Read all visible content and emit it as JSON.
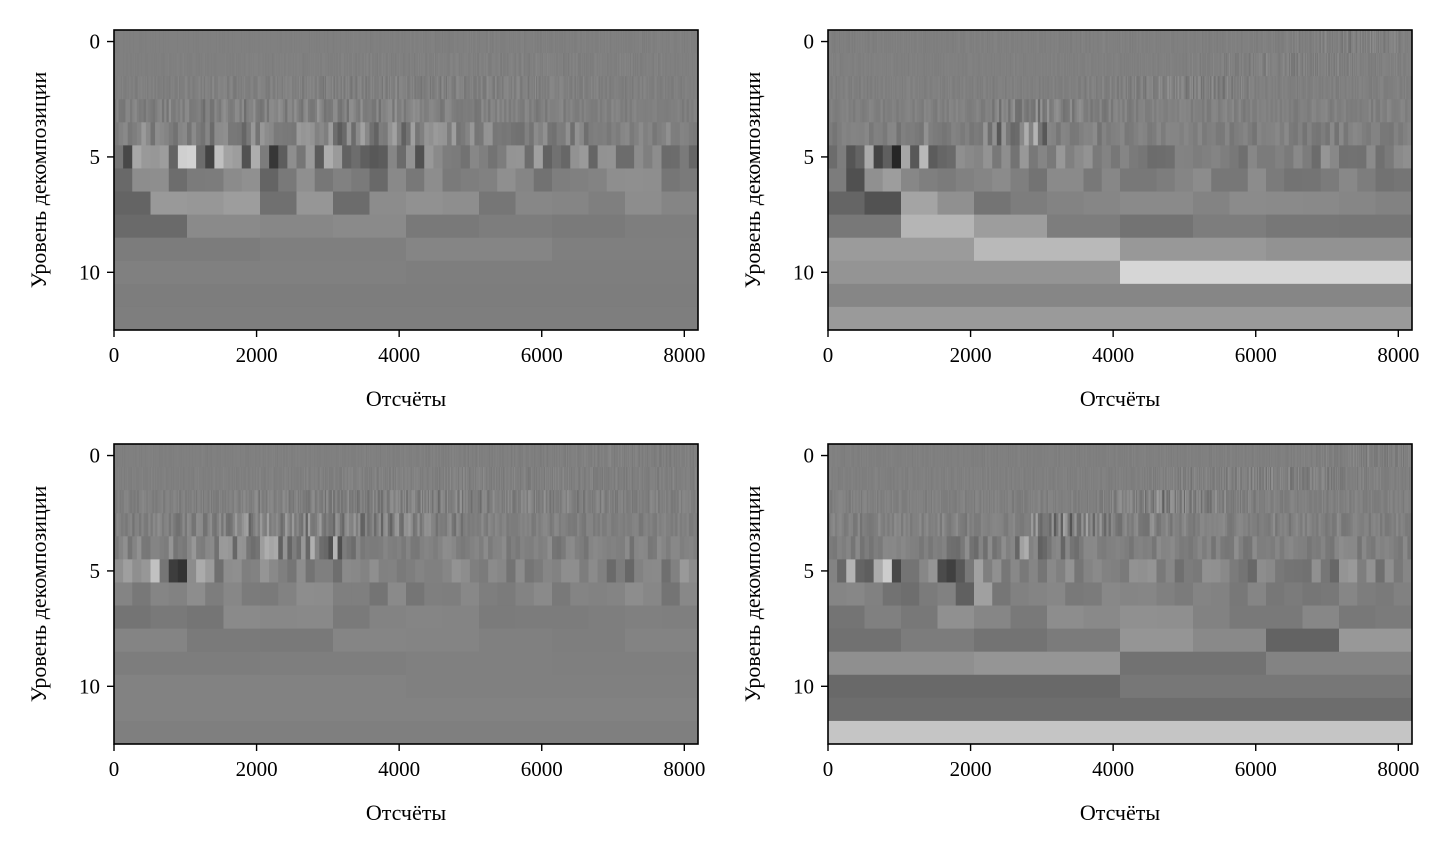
{
  "chart_data": [
    {
      "type": "heatmap",
      "title": "",
      "xlabel": "Отсчёты",
      "ylabel": "Уровень декомпозиции",
      "xlim": [
        0,
        8192
      ],
      "ylim": [
        12.5,
        -0.5
      ],
      "xticks": [
        0,
        2000,
        4000,
        6000,
        8000
      ],
      "yticks": [
        0,
        5,
        10
      ],
      "grid": false,
      "colormap": "gray",
      "rows": [
        {
          "level": 0,
          "amplitude": 0.05,
          "active_from": 0,
          "active_to": 8192,
          "peak_at": 6200
        },
        {
          "level": 1,
          "amplitude": 0.07,
          "active_from": 0,
          "active_to": 8192,
          "peak_at": 5500
        },
        {
          "level": 2,
          "amplitude": 0.12,
          "active_from": 0,
          "active_to": 8192,
          "peak_at": 4200
        },
        {
          "level": 3,
          "amplitude": 0.18,
          "active_from": 0,
          "active_to": 8192,
          "peak_at": 2800
        },
        {
          "level": 4,
          "amplitude": 0.35,
          "active_from": 0,
          "active_to": 8192,
          "peak_at": 2700
        },
        {
          "level": 5,
          "amplitude": 0.85,
          "active_from": 0,
          "active_to": 8192,
          "peak_at": 800
        },
        {
          "level": 6,
          "amplitude": 0.45,
          "active_from": 0,
          "active_to": 8192,
          "peak_at": 300
        },
        {
          "level": 7,
          "amplitude": 0.3,
          "active_from": 0,
          "active_to": 8192,
          "peak_at": 800
        },
        {
          "level": 8,
          "amplitude": 0.18,
          "active_from": 0,
          "active_to": 8192,
          "peak_at": 400
        },
        {
          "level": 9,
          "amplitude": 0.08,
          "active_from": 0,
          "active_to": 8192,
          "peak_at": 2000
        },
        {
          "level": 10,
          "amplitude": 0.04,
          "active_from": 0,
          "active_to": 8192,
          "peak_at": 4000
        },
        {
          "level": 11,
          "amplitude": 0.04,
          "active_from": 0,
          "active_to": 8192,
          "peak_at": 3000
        },
        {
          "level": 12,
          "amplitude": 0.02,
          "active_from": 0,
          "active_to": 8192,
          "peak_at": 4000
        }
      ]
    },
    {
      "type": "heatmap",
      "title": "",
      "xlabel": "Отсчёты",
      "ylabel": "Уровень декомпозиции",
      "xlim": [
        0,
        8192
      ],
      "ylim": [
        12.5,
        -0.5
      ],
      "xticks": [
        0,
        2000,
        4000,
        6000,
        8000
      ],
      "yticks": [
        0,
        5,
        10
      ],
      "grid": false,
      "colormap": "gray",
      "rows": [
        {
          "level": 0,
          "amplitude": 0.2,
          "active_from": 6000,
          "active_to": 8192,
          "peak_at": 7500
        },
        {
          "level": 1,
          "amplitude": 0.15,
          "active_from": 5000,
          "active_to": 8192,
          "peak_at": 6500
        },
        {
          "level": 2,
          "amplitude": 0.2,
          "active_from": 3500,
          "active_to": 6000,
          "peak_at": 5000
        },
        {
          "level": 3,
          "amplitude": 0.3,
          "active_from": 2300,
          "active_to": 4300,
          "peak_at": 2900
        },
        {
          "level": 4,
          "amplitude": 0.45,
          "active_from": 1000,
          "active_to": 3300,
          "peak_at": 2700
        },
        {
          "level": 5,
          "amplitude": 0.9,
          "active_from": 200,
          "active_to": 1900,
          "peak_at": 800
        },
        {
          "level": 6,
          "amplitude": 0.5,
          "active_from": 100,
          "active_to": 1200,
          "peak_at": 500
        },
        {
          "level": 7,
          "amplitude": 0.4,
          "active_from": 0,
          "active_to": 2000,
          "peak_at": 800
        },
        {
          "level": 8,
          "amplitude": 0.45,
          "active_from": 0,
          "active_to": 3500,
          "peak_at": 1600
        },
        {
          "level": 9,
          "amplitude": 0.6,
          "active_from": 0,
          "active_to": 8192,
          "peak_at": 3300
        },
        {
          "level": 10,
          "amplitude": 0.95,
          "active_from": 0,
          "active_to": 8192,
          "peak_at": 6700
        },
        {
          "level": 11,
          "amplitude": 0.5,
          "active_from": 0,
          "active_to": 8192,
          "peak_at": 3000
        },
        {
          "level": 12,
          "amplitude": 0.5,
          "active_from": 0,
          "active_to": 8192,
          "peak_at": 6000
        }
      ]
    },
    {
      "type": "heatmap",
      "title": "",
      "xlabel": "Отсчёты",
      "ylabel": "Уровень декомпозиции",
      "xlim": [
        0,
        8192
      ],
      "ylim": [
        12.5,
        -0.5
      ],
      "xticks": [
        0,
        2000,
        4000,
        6000,
        8000
      ],
      "yticks": [
        0,
        5,
        10
      ],
      "grid": false,
      "colormap": "gray",
      "rows": [
        {
          "level": 0,
          "amplitude": 0.1,
          "active_from": 0,
          "active_to": 8192,
          "peak_at": 7000
        },
        {
          "level": 1,
          "amplitude": 0.12,
          "active_from": 0,
          "active_to": 8192,
          "peak_at": 5600
        },
        {
          "level": 2,
          "amplitude": 0.2,
          "active_from": 0,
          "active_to": 8192,
          "peak_at": 4600
        },
        {
          "level": 3,
          "amplitude": 0.35,
          "active_from": 0,
          "active_to": 5000,
          "peak_at": 3000
        },
        {
          "level": 4,
          "amplitude": 0.5,
          "active_from": 0,
          "active_to": 3400,
          "peak_at": 2700
        },
        {
          "level": 5,
          "amplitude": 0.9,
          "active_from": 100,
          "active_to": 2200,
          "peak_at": 800
        },
        {
          "level": 6,
          "amplitude": 0.55,
          "active_from": 100,
          "active_to": 800,
          "peak_at": 400
        },
        {
          "level": 7,
          "amplitude": 0.12,
          "active_from": 0,
          "active_to": 8192,
          "peak_at": 800
        },
        {
          "level": 8,
          "amplitude": 0.07,
          "active_from": 0,
          "active_to": 8192,
          "peak_at": 1200
        },
        {
          "level": 9,
          "amplitude": 0.05,
          "active_from": 0,
          "active_to": 8192,
          "peak_at": 2000
        },
        {
          "level": 10,
          "amplitude": 0.03,
          "active_from": 0,
          "active_to": 8192,
          "peak_at": 4000
        },
        {
          "level": 11,
          "amplitude": 0.02,
          "active_from": 0,
          "active_to": 8192,
          "peak_at": 3000
        },
        {
          "level": 12,
          "amplitude": 0.02,
          "active_from": 0,
          "active_to": 8192,
          "peak_at": 4000
        }
      ]
    },
    {
      "type": "heatmap",
      "title": "",
      "xlabel": "Отсчёты",
      "ylabel": "Уровень декомпозиции",
      "xlim": [
        0,
        8192
      ],
      "ylim": [
        12.5,
        -0.5
      ],
      "xticks": [
        0,
        2000,
        4000,
        6000,
        8000
      ],
      "yticks": [
        0,
        5,
        10
      ],
      "grid": false,
      "colormap": "gray",
      "rows": [
        {
          "level": 0,
          "amplitude": 0.2,
          "active_from": 6500,
          "active_to": 8192,
          "peak_at": 7600
        },
        {
          "level": 1,
          "amplitude": 0.2,
          "active_from": 4400,
          "active_to": 8192,
          "peak_at": 6200
        },
        {
          "level": 2,
          "amplitude": 0.3,
          "active_from": 3800,
          "active_to": 6000,
          "peak_at": 4800
        },
        {
          "level": 3,
          "amplitude": 0.45,
          "active_from": 2800,
          "active_to": 4600,
          "peak_at": 3300
        },
        {
          "level": 4,
          "amplitude": 0.5,
          "active_from": 1500,
          "active_to": 3500,
          "peak_at": 2800
        },
        {
          "level": 5,
          "amplitude": 0.85,
          "active_from": 0,
          "active_to": 2600,
          "peak_at": 1200
        },
        {
          "level": 6,
          "amplitude": 0.35,
          "active_from": 0,
          "active_to": 2600,
          "peak_at": 1900
        },
        {
          "level": 7,
          "amplitude": 0.25,
          "active_from": 0,
          "active_to": 8192,
          "peak_at": 3700
        },
        {
          "level": 8,
          "amplitude": 0.45,
          "active_from": 0,
          "active_to": 8192,
          "peak_at": 7500
        },
        {
          "level": 9,
          "amplitude": 0.35,
          "active_from": 0,
          "active_to": 8192,
          "peak_at": 2000
        },
        {
          "level": 10,
          "amplitude": 0.3,
          "active_from": 0,
          "active_to": 8192,
          "peak_at": 300
        },
        {
          "level": 11,
          "amplitude": 0.55,
          "active_from": 0,
          "active_to": 8192,
          "peak_at": 1000
        },
        {
          "level": 12,
          "amplitude": 0.85,
          "active_from": 0,
          "active_to": 8192,
          "peak_at": 2000
        }
      ]
    }
  ]
}
